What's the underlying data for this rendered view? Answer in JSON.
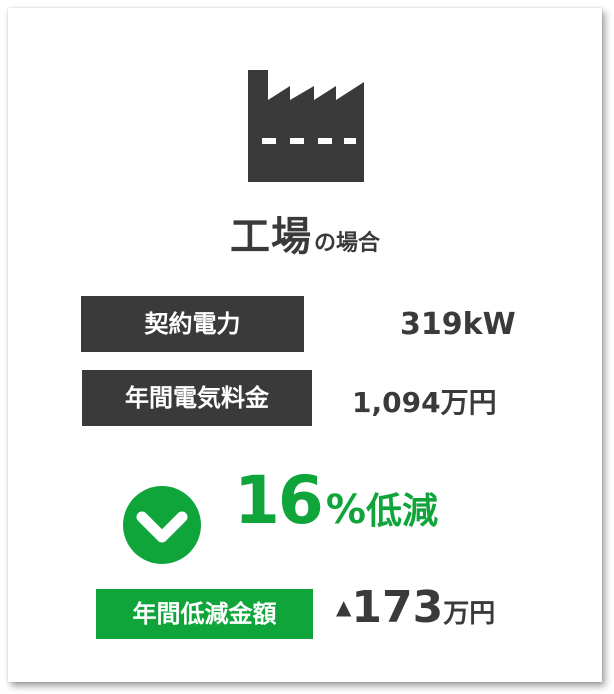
{
  "colors": {
    "dark": "#3a3a3a",
    "green": "#0fa53a",
    "white": "#ffffff"
  },
  "icons": {
    "factory": "factory-icon",
    "check": "chevron-down-check-icon"
  },
  "heading": {
    "main": "工場",
    "sub": "の場合"
  },
  "rows": [
    {
      "label": "契約電力",
      "value": "319kW"
    },
    {
      "label": "年間電気料金",
      "value": "1,094万円"
    }
  ],
  "reduction": {
    "number": "16",
    "percent_sign": "%",
    "word": "低減"
  },
  "saving": {
    "label": "年間低減金額",
    "marker": "▲",
    "number": "173",
    "unit": "万円"
  }
}
